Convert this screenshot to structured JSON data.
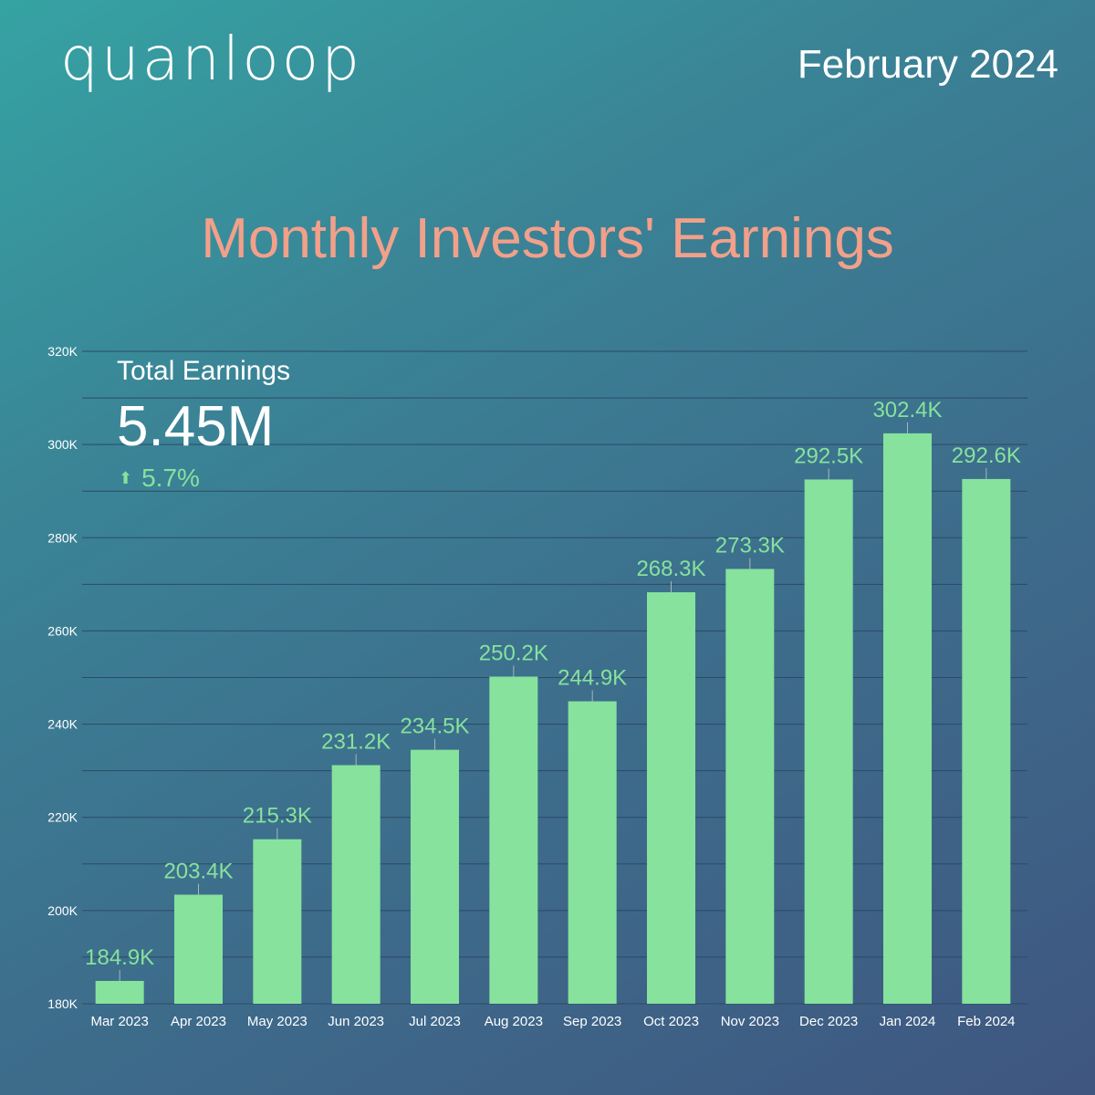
{
  "brand": "quanloop",
  "period": "February 2024",
  "kpi": {
    "label": "Total Earnings",
    "value": "5.45M",
    "change": "5.7%",
    "change_icon": "arrow-up-icon"
  },
  "colors": {
    "bar": "#86e29d",
    "title": "#f2a08a",
    "grid": "#2c4a66"
  },
  "chart_data": {
    "type": "bar",
    "title": "Monthly Investors' Earnings",
    "xlabel": "",
    "ylabel": "",
    "categories": [
      "Mar 2023",
      "Apr 2023",
      "May 2023",
      "Jun 2023",
      "Jul 2023",
      "Aug 2023",
      "Sep 2023",
      "Oct 2023",
      "Nov 2023",
      "Dec 2023",
      "Jan 2024",
      "Feb 2024"
    ],
    "values": [
      184.9,
      203.4,
      215.3,
      231.2,
      234.5,
      250.2,
      244.9,
      268.3,
      273.3,
      292.5,
      302.4,
      292.6
    ],
    "value_labels": [
      "184.9K",
      "203.4K",
      "215.3K",
      "231.2K",
      "234.5K",
      "250.2K",
      "244.9K",
      "268.3K",
      "273.3K",
      "292.5K",
      "302.4K",
      "292.6K"
    ],
    "ylim": [
      180,
      320
    ],
    "yticks": [
      180,
      200,
      220,
      240,
      260,
      280,
      300,
      320
    ],
    "ytick_labels": [
      "180K",
      "200K",
      "220K",
      "240K",
      "260K",
      "280K",
      "300K",
      "320K"
    ],
    "grid": true,
    "legend": "none"
  }
}
